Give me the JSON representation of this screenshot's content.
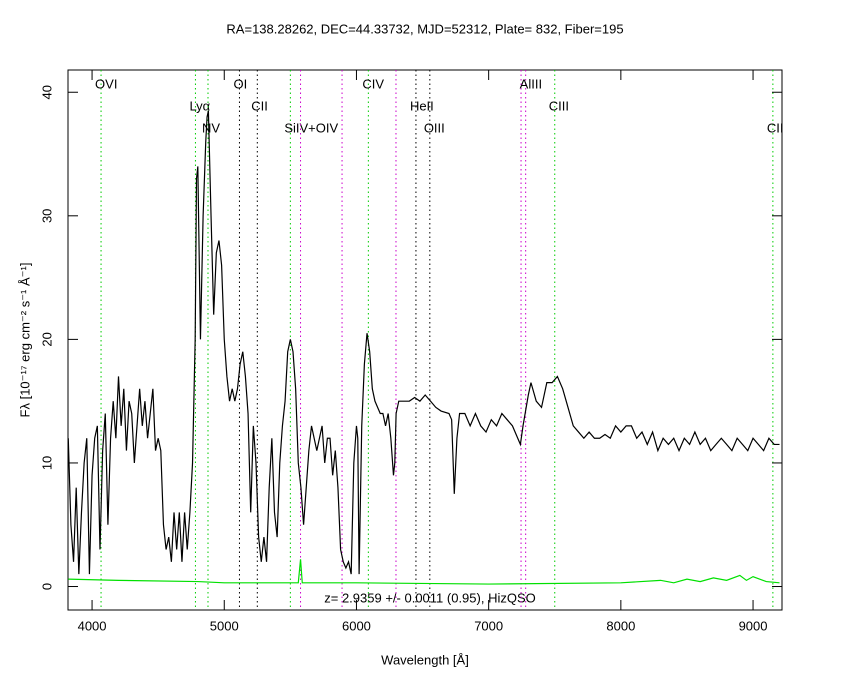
{
  "chart_data": {
    "type": "line",
    "title": "RA=138.28262, DEC=44.33732, MJD=52312, Plate= 832, Fiber=195",
    "x_label": "Wavelength [Å]",
    "y_label": "Fλ [10⁻¹⁷ erg cm⁻² s⁻¹ Å⁻¹]",
    "annotation": "z= 2.9359 +/- 0.0011 (0.95), HizQSO",
    "xlim": [
      3818,
      9219
    ],
    "ylim": [
      -1.9,
      41.8
    ],
    "xticks": [
      4000,
      5000,
      6000,
      7000,
      8000,
      9000
    ],
    "yticks": [
      0,
      10,
      20,
      30,
      40
    ],
    "series": [
      {
        "color": "#000000",
        "x": [
          3820,
          3840,
          3860,
          3880,
          3900,
          3920,
          3940,
          3960,
          3980,
          4000,
          4020,
          4040,
          4060,
          4080,
          4100,
          4120,
          4140,
          4160,
          4180,
          4200,
          4220,
          4240,
          4260,
          4280,
          4300,
          4320,
          4340,
          4360,
          4380,
          4400,
          4420,
          4440,
          4460,
          4480,
          4500,
          4520,
          4540,
          4560,
          4580,
          4600,
          4620,
          4640,
          4660,
          4680,
          4700,
          4720,
          4740,
          4760,
          4780,
          4790,
          4800,
          4820,
          4840,
          4860,
          4870,
          4880,
          4900,
          4920,
          4940,
          4960,
          4980,
          5000,
          5020,
          5040,
          5060,
          5080,
          5100,
          5120,
          5140,
          5160,
          5180,
          5200,
          5220,
          5240,
          5260,
          5280,
          5300,
          5320,
          5340,
          5360,
          5380,
          5400,
          5420,
          5440,
          5460,
          5480,
          5500,
          5520,
          5540,
          5560,
          5580,
          5600,
          5620,
          5640,
          5660,
          5680,
          5700,
          5720,
          5740,
          5760,
          5780,
          5800,
          5820,
          5840,
          5860,
          5880,
          5900,
          5920,
          5940,
          5960,
          5980,
          6000,
          6010,
          6020,
          6040,
          6060,
          6080,
          6100,
          6120,
          6140,
          6160,
          6180,
          6200,
          6220,
          6240,
          6260,
          6280,
          6290,
          6300,
          6320,
          6340,
          6400,
          6440,
          6480,
          6520,
          6560,
          6600,
          6640,
          6700,
          6720,
          6740,
          6760,
          6780,
          6820,
          6860,
          6900,
          6940,
          6980,
          7020,
          7060,
          7100,
          7140,
          7180,
          7220,
          7240,
          7260,
          7300,
          7320,
          7360,
          7400,
          7440,
          7480,
          7520,
          7560,
          7600,
          7640,
          7680,
          7720,
          7760,
          7800,
          7840,
          7880,
          7920,
          7960,
          8000,
          8040,
          8080,
          8120,
          8160,
          8200,
          8240,
          8280,
          8320,
          8360,
          8400,
          8440,
          8480,
          8520,
          8560,
          8600,
          8640,
          8680,
          8720,
          8760,
          8800,
          8840,
          8880,
          8920,
          8960,
          9000,
          9040,
          9080,
          9120,
          9160,
          9200
        ],
        "values": [
          12,
          5,
          2,
          8,
          1,
          6,
          10,
          12,
          1,
          9,
          12,
          13,
          3,
          11,
          14,
          5,
          12,
          15,
          12,
          17,
          13,
          16,
          11,
          15,
          14,
          10,
          13,
          16,
          13,
          15,
          12,
          14,
          16,
          11,
          12,
          11,
          5,
          3,
          4,
          2,
          6,
          3,
          6,
          2,
          6,
          3,
          6,
          10,
          20,
          33,
          34,
          20,
          30,
          36,
          38,
          38.5,
          30,
          22,
          27,
          28,
          26,
          20,
          17,
          15,
          16,
          15,
          16,
          18,
          19,
          17,
          14,
          6,
          13,
          10,
          4,
          2,
          4,
          2,
          8,
          12,
          6,
          4,
          10,
          13,
          15,
          19,
          20,
          19,
          16,
          10,
          8,
          5,
          8,
          11,
          13,
          12,
          11,
          12,
          13,
          10,
          12,
          12,
          9,
          11,
          8,
          3,
          2,
          1.5,
          2,
          1,
          10,
          13,
          12,
          1,
          13,
          18,
          20.5,
          19,
          16,
          15,
          14.5,
          14,
          14,
          13,
          14,
          12,
          9,
          10,
          14,
          15,
          15,
          15,
          15.3,
          15,
          15.5,
          15,
          14.5,
          14.2,
          14,
          13.5,
          7.5,
          12,
          14,
          14,
          13,
          14,
          13,
          12.5,
          13.5,
          13,
          14,
          13.5,
          13,
          12,
          11.5,
          13,
          15.5,
          16.5,
          15,
          14.5,
          16.5,
          16.5,
          17,
          16,
          14.5,
          13,
          12.5,
          12,
          12.5,
          12,
          12,
          12.3,
          12,
          13,
          12.5,
          13,
          13,
          12,
          12.5,
          11.5,
          12.5,
          11,
          12,
          11.5,
          12,
          11,
          12,
          11.5,
          12.5,
          11.5,
          12,
          11,
          11.5,
          12,
          11.5,
          11,
          12,
          11.5,
          11,
          12,
          11.5,
          11,
          12,
          11.5,
          11.5
        ]
      },
      {
        "color": "#00e000",
        "x": [
          3820,
          4200,
          4800,
          5000,
          5560,
          5577,
          5590,
          6000,
          7000,
          8000,
          8300,
          8400,
          8500,
          8600,
          8700,
          8800,
          8900,
          8950,
          9000,
          9100,
          9200
        ],
        "values": [
          0.6,
          0.5,
          0.4,
          0.3,
          0.3,
          2.2,
          0.3,
          0.3,
          0.2,
          0.3,
          0.5,
          0.3,
          0.6,
          0.4,
          0.7,
          0.5,
          0.9,
          0.5,
          0.8,
          0.4,
          0.3
        ]
      }
    ],
    "lines": [
      {
        "wavelength": 4068,
        "label": "OVI",
        "color": "#00cc00"
      },
      {
        "wavelength": 4782,
        "label": "Lyα",
        "color": "#00cc00"
      },
      {
        "wavelength": 4877,
        "label": "NV",
        "color": "#00cc00"
      },
      {
        "wavelength": 5115,
        "label": "OI",
        "color": "#000000"
      },
      {
        "wavelength": 5250,
        "label": "CII",
        "color": "#000000"
      },
      {
        "wavelength": 5500,
        "label": "SiIV+OIV",
        "color": "#00cc00"
      },
      {
        "wavelength": 6090,
        "label": "CIV",
        "color": "#00cc00"
      },
      {
        "wavelength": 6450,
        "label": "HeII",
        "color": "#000000"
      },
      {
        "wavelength": 6555,
        "label": "OIII",
        "color": "#000000"
      },
      {
        "wavelength": 7280,
        "label": "AlIII",
        "color": "#cc00cc"
      },
      {
        "wavelength": 7500,
        "label": "CIII",
        "color": "#00cc00"
      },
      {
        "wavelength": 9150,
        "label": "CII",
        "color": "#00cc00"
      },
      {
        "wavelength": 5577,
        "color": "#cc00cc"
      },
      {
        "wavelength": 5891,
        "color": "#cc00cc"
      },
      {
        "wavelength": 6299,
        "color": "#cc00cc"
      },
      {
        "wavelength": 7245,
        "color": "#cc00cc"
      }
    ]
  }
}
